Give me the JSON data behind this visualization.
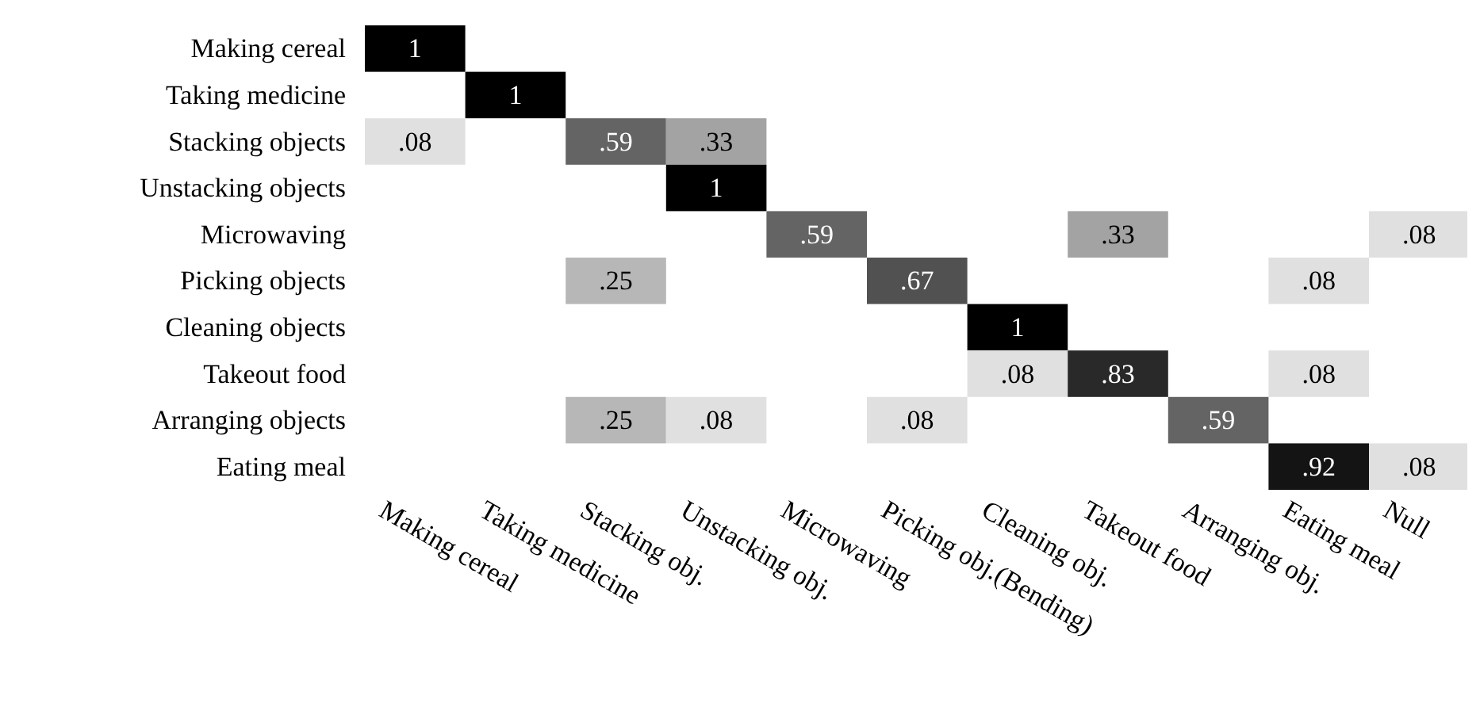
{
  "chart_data": {
    "type": "heatmap",
    "categories": [
      "Making cereal",
      "Taking medicine",
      "Stacking obj.",
      "Unstacking obj.",
      "Microwaving",
      "Picking obj.(Bending)",
      "Cleaning obj.",
      "Takeout food",
      "Arranging obj.",
      "Eating meal",
      "Null"
    ],
    "y_categories": [
      "Making cereal",
      "Taking medicine",
      "Stacking objects",
      "Unstacking objects",
      "Microwaving",
      "Picking objects",
      "Cleaning objects",
      "Takeout food",
      "Arranging objects",
      "Eating meal"
    ],
    "cells": [
      [
        1,
        null,
        null,
        null,
        null,
        null,
        null,
        null,
        null,
        null,
        null
      ],
      [
        null,
        1,
        null,
        null,
        null,
        null,
        null,
        null,
        null,
        null,
        null
      ],
      [
        0.08,
        null,
        0.59,
        0.33,
        null,
        null,
        null,
        null,
        null,
        null,
        null
      ],
      [
        null,
        null,
        null,
        1,
        null,
        null,
        null,
        null,
        null,
        null,
        null
      ],
      [
        null,
        null,
        null,
        null,
        0.59,
        null,
        null,
        0.33,
        null,
        null,
        0.08
      ],
      [
        null,
        null,
        0.25,
        null,
        null,
        0.67,
        null,
        null,
        null,
        0.08,
        null
      ],
      [
        null,
        null,
        null,
        null,
        null,
        null,
        1,
        null,
        null,
        null,
        null
      ],
      [
        null,
        null,
        null,
        null,
        null,
        null,
        0.08,
        0.83,
        null,
        0.08,
        null
      ],
      [
        null,
        null,
        0.25,
        0.08,
        null,
        0.08,
        null,
        null,
        0.59,
        null,
        null
      ],
      [
        null,
        null,
        null,
        null,
        null,
        null,
        null,
        null,
        null,
        0.92,
        0.08
      ]
    ],
    "cell_labels": [
      [
        "1",
        null,
        null,
        null,
        null,
        null,
        null,
        null,
        null,
        null,
        null
      ],
      [
        null,
        "1",
        null,
        null,
        null,
        null,
        null,
        null,
        null,
        null,
        null
      ],
      [
        ".08",
        null,
        ".59",
        ".33",
        null,
        null,
        null,
        null,
        null,
        null,
        null
      ],
      [
        null,
        null,
        null,
        "1",
        null,
        null,
        null,
        null,
        null,
        null,
        null
      ],
      [
        null,
        null,
        null,
        null,
        ".59",
        null,
        null,
        ".33",
        null,
        null,
        ".08"
      ],
      [
        null,
        null,
        ".25",
        null,
        null,
        ".67",
        null,
        null,
        null,
        ".08",
        null
      ],
      [
        null,
        null,
        null,
        null,
        null,
        null,
        "1",
        null,
        null,
        null,
        null
      ],
      [
        null,
        null,
        null,
        null,
        null,
        null,
        ".08",
        ".83",
        null,
        ".08",
        null
      ],
      [
        null,
        null,
        ".25",
        ".08",
        null,
        ".08",
        null,
        null,
        ".59",
        null,
        null
      ],
      [
        null,
        null,
        null,
        null,
        null,
        null,
        null,
        null,
        null,
        ".92",
        ".08"
      ]
    ]
  }
}
